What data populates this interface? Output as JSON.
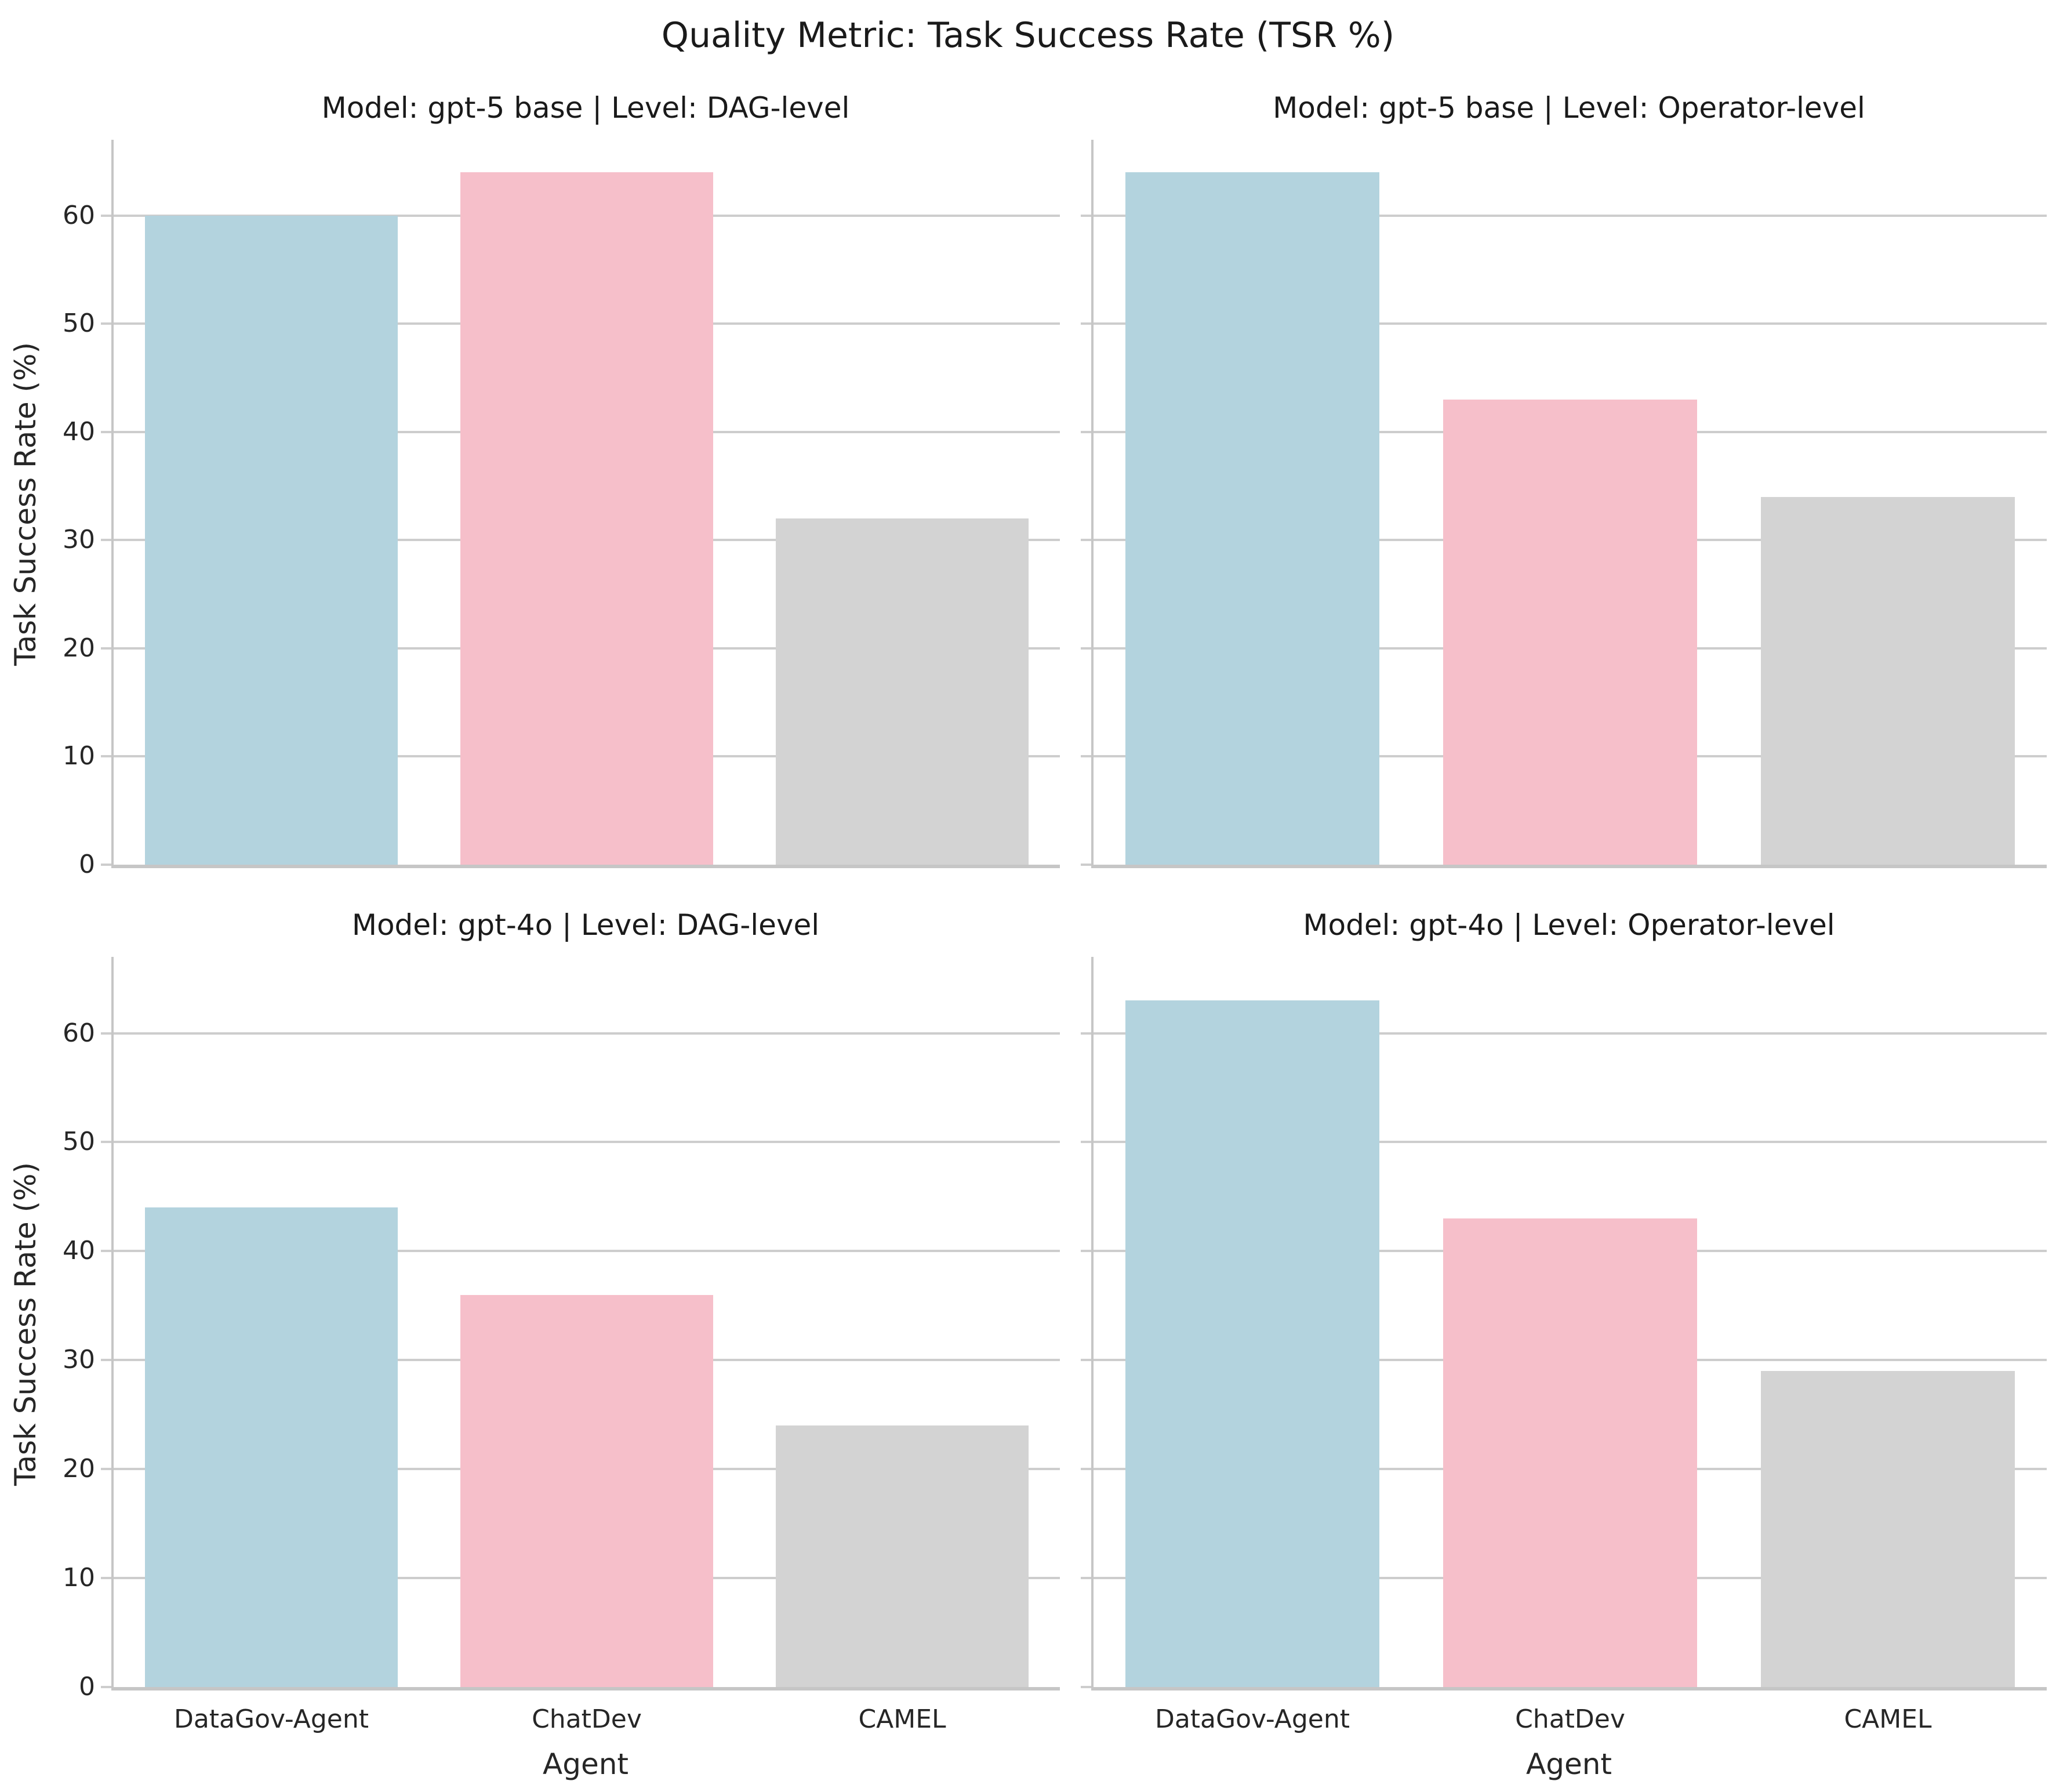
{
  "title": "Quality Metric: Task Success Rate (TSR %)",
  "axis": {
    "xlabel": "Agent",
    "ylabel": "Task Success Rate (%)"
  },
  "palette": {
    "DataGov-Agent": "#B3D3DE",
    "ChatDev": "#F6BFCA",
    "CAMEL": "#D3D3D3",
    "gridline": "#CDCDCD",
    "spine": "#C6C6C6",
    "text": "#262626"
  },
  "chart_data": [
    {
      "type": "bar",
      "model": "gpt-5 base",
      "level": "DAG-level",
      "title": "Model: gpt-5 base | Level: DAG-level",
      "categories": [
        "DataGov-Agent",
        "ChatDev",
        "CAMEL"
      ],
      "values": [
        60,
        64,
        32
      ],
      "bar_colors": [
        "#B3D3DE",
        "#F6BFCA",
        "#D3D3D3"
      ],
      "xlabel": "Agent",
      "ylabel": "Task Success Rate (%)",
      "ylim": [
        0,
        67
      ],
      "yticks": [
        0,
        10,
        20,
        30,
        40,
        50,
        60
      ],
      "grid": true,
      "show_y_tick_labels": true,
      "show_x_tick_labels": false,
      "show_ylabel": true,
      "show_xlabel": false
    },
    {
      "type": "bar",
      "model": "gpt-5 base",
      "level": "Operator-level",
      "title": "Model: gpt-5 base | Level: Operator-level",
      "categories": [
        "DataGov-Agent",
        "ChatDev",
        "CAMEL"
      ],
      "values": [
        64,
        43,
        34
      ],
      "bar_colors": [
        "#B3D3DE",
        "#F6BFCA",
        "#D3D3D3"
      ],
      "xlabel": "Agent",
      "ylabel": "Task Success Rate (%)",
      "ylim": [
        0,
        67
      ],
      "yticks": [
        0,
        10,
        20,
        30,
        40,
        50,
        60
      ],
      "grid": true,
      "show_y_tick_labels": false,
      "show_x_tick_labels": false,
      "show_ylabel": false,
      "show_xlabel": false
    },
    {
      "type": "bar",
      "model": "gpt-4o",
      "level": "DAG-level",
      "title": "Model: gpt-4o | Level: DAG-level",
      "categories": [
        "DataGov-Agent",
        "ChatDev",
        "CAMEL"
      ],
      "values": [
        44,
        36,
        24
      ],
      "bar_colors": [
        "#B3D3DE",
        "#F6BFCA",
        "#D3D3D3"
      ],
      "xlabel": "Agent",
      "ylabel": "Task Success Rate (%)",
      "ylim": [
        0,
        67
      ],
      "yticks": [
        0,
        10,
        20,
        30,
        40,
        50,
        60
      ],
      "grid": true,
      "show_y_tick_labels": true,
      "show_x_tick_labels": true,
      "show_ylabel": true,
      "show_xlabel": true
    },
    {
      "type": "bar",
      "model": "gpt-4o",
      "level": "Operator-level",
      "title": "Model: gpt-4o | Level: Operator-level",
      "categories": [
        "DataGov-Agent",
        "ChatDev",
        "CAMEL"
      ],
      "values": [
        63,
        43,
        29
      ],
      "bar_colors": [
        "#B3D3DE",
        "#F6BFCA",
        "#D3D3D3"
      ],
      "xlabel": "Agent",
      "ylabel": "Task Success Rate (%)",
      "ylim": [
        0,
        67
      ],
      "yticks": [
        0,
        10,
        20,
        30,
        40,
        50,
        60
      ],
      "grid": true,
      "show_y_tick_labels": false,
      "show_x_tick_labels": true,
      "show_ylabel": false,
      "show_xlabel": true
    }
  ]
}
